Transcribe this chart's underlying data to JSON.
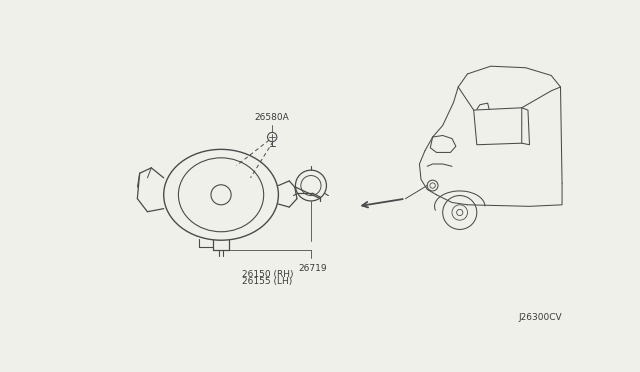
{
  "background_color": "#f0f0eb",
  "part_numbers": {
    "lamp_assembly": [
      "26150 (RH)",
      "26155 (LH)"
    ],
    "bulb_socket": "26719",
    "bulb": "26580A"
  },
  "diagram_ref": "J26300CV",
  "text_color": "#3a3a3a",
  "line_color": "#4a4a4a",
  "font_size_label": 6.5,
  "font_size_ref": 6.5
}
